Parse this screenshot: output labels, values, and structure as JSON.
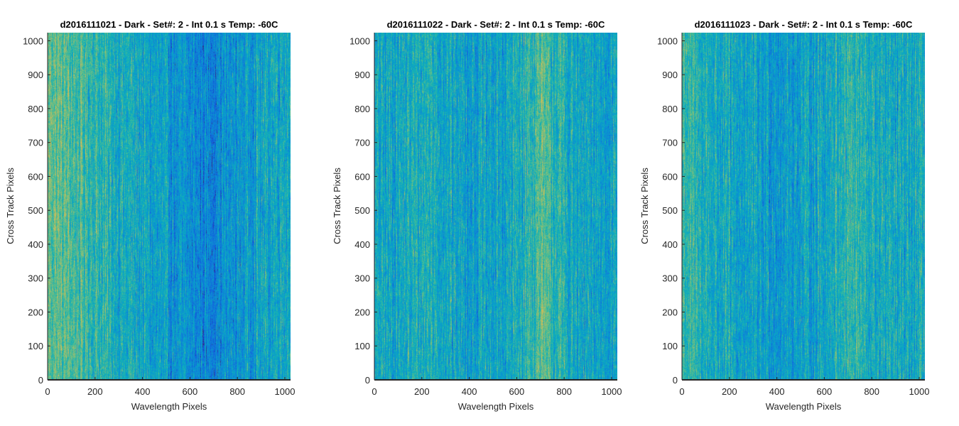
{
  "chart_data": [
    {
      "type": "heatmap",
      "title": "d2016111021 - Dark - Set#: 2 - Int 0.1 s Temp: -60C",
      "xlabel": "Wavelength Pixels",
      "ylabel": "Cross Track Pixels",
      "xlim": [
        0,
        1024
      ],
      "ylim": [
        0,
        1024
      ],
      "xticks": [
        0,
        200,
        400,
        600,
        800,
        1000
      ],
      "yticks": [
        0,
        100,
        200,
        300,
        400,
        500,
        600,
        700,
        800,
        900,
        1000
      ],
      "colormap": "parula",
      "column_level_profile": [
        [
          0,
          0.66
        ],
        [
          80,
          0.6
        ],
        [
          180,
          0.55
        ],
        [
          300,
          0.47
        ],
        [
          450,
          0.4
        ],
        [
          560,
          0.33
        ],
        [
          650,
          0.28
        ],
        [
          720,
          0.3
        ],
        [
          820,
          0.37
        ],
        [
          920,
          0.43
        ],
        [
          1024,
          0.48
        ]
      ]
    },
    {
      "type": "heatmap",
      "title": "d2016111022 - Dark - Set#: 2 - Int 0.1 s Temp: -60C",
      "xlabel": "Wavelength Pixels",
      "ylabel": "Cross Track Pixels",
      "xlim": [
        0,
        1024
      ],
      "ylim": [
        0,
        1024
      ],
      "xticks": [
        0,
        200,
        400,
        600,
        800,
        1000
      ],
      "yticks": [
        0,
        100,
        200,
        300,
        400,
        500,
        600,
        700,
        800,
        900,
        1000
      ],
      "colormap": "parula",
      "column_level_profile": [
        [
          0,
          0.42
        ],
        [
          120,
          0.44
        ],
        [
          230,
          0.5
        ],
        [
          330,
          0.43
        ],
        [
          450,
          0.4
        ],
        [
          560,
          0.42
        ],
        [
          650,
          0.52
        ],
        [
          700,
          0.6
        ],
        [
          760,
          0.53
        ],
        [
          880,
          0.4
        ],
        [
          1024,
          0.44
        ]
      ]
    },
    {
      "type": "heatmap",
      "title": "d2016111023 - Dark - Set#: 2 - Int 0.1 s Temp: -60C",
      "xlabel": "Wavelength Pixels",
      "ylabel": "Cross Track Pixels",
      "xlim": [
        0,
        1024
      ],
      "ylim": [
        0,
        1024
      ],
      "xticks": [
        0,
        200,
        400,
        600,
        800,
        1000
      ],
      "yticks": [
        0,
        100,
        200,
        300,
        400,
        500,
        600,
        700,
        800,
        900,
        1000
      ],
      "colormap": "parula",
      "column_level_profile": [
        [
          0,
          0.56
        ],
        [
          60,
          0.5
        ],
        [
          160,
          0.44
        ],
        [
          300,
          0.4
        ],
        [
          420,
          0.38
        ],
        [
          540,
          0.41
        ],
        [
          640,
          0.47
        ],
        [
          700,
          0.55
        ],
        [
          780,
          0.47
        ],
        [
          900,
          0.43
        ],
        [
          1024,
          0.45
        ]
      ]
    }
  ]
}
